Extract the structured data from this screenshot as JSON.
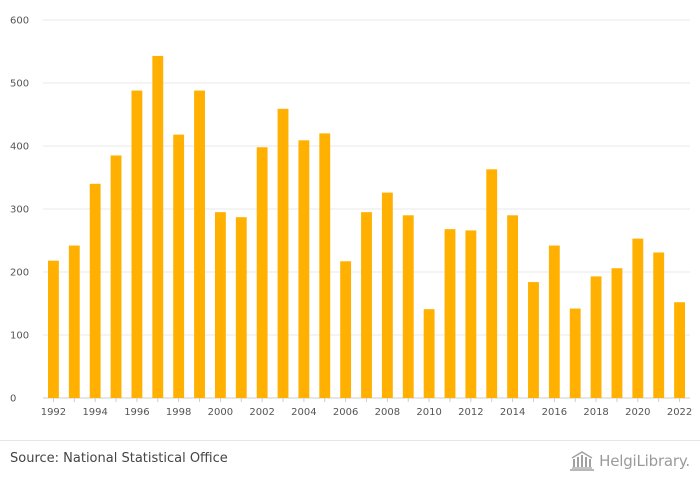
{
  "chart_data": {
    "type": "bar",
    "title": "",
    "xlabel": "",
    "ylabel": "",
    "ylim": [
      0,
      600
    ],
    "yticks": [
      0,
      100,
      200,
      300,
      400,
      500,
      600
    ],
    "grid": true,
    "legend": "none",
    "bar_color": "#FFB000",
    "categories": [
      "1992",
      "1993",
      "1994",
      "1995",
      "1996",
      "1997",
      "1998",
      "1999",
      "2000",
      "2001",
      "2002",
      "2003",
      "2004",
      "2005",
      "2006",
      "2007",
      "2008",
      "2009",
      "2010",
      "2011",
      "2012",
      "2013",
      "2014",
      "2015",
      "2016",
      "2017",
      "2018",
      "2019",
      "2020",
      "2021",
      "2022"
    ],
    "xtick_labels": [
      "1992",
      "1994",
      "1996",
      "1998",
      "2000",
      "2002",
      "2004",
      "2006",
      "2008",
      "2010",
      "2012",
      "2014",
      "2016",
      "2018",
      "2020",
      "2022"
    ],
    "values": [
      218,
      242,
      340,
      385,
      488,
      543,
      418,
      488,
      295,
      287,
      398,
      459,
      409,
      420,
      217,
      295,
      326,
      290,
      141,
      268,
      266,
      363,
      290,
      184,
      242,
      142,
      193,
      206,
      253,
      231,
      152
    ]
  },
  "footer": {
    "source": "Source: National Statistical Office",
    "logo_text": "HelgiLibrary."
  },
  "colors": {
    "bar": "#FFB000",
    "grid": "#e8e8e8",
    "axis": "#cccccc"
  }
}
